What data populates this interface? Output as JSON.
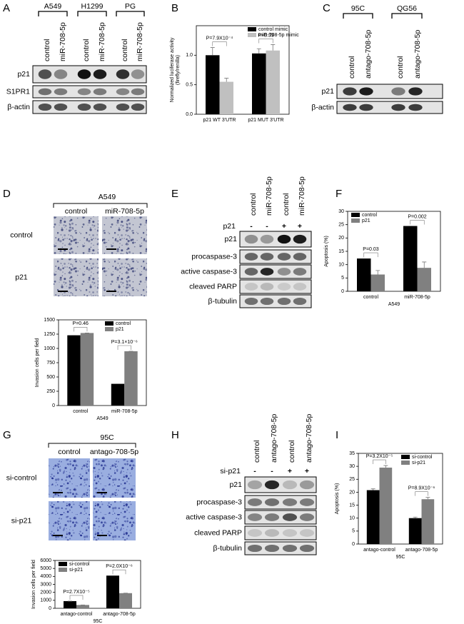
{
  "panel_labels": [
    "A",
    "B",
    "C",
    "D",
    "E",
    "F",
    "G",
    "H",
    "I"
  ],
  "blot_A": {
    "groups": [
      "A549",
      "H1299",
      "PG"
    ],
    "lanes": [
      "control",
      "miR-708-5p",
      "control",
      "miR-708-5p",
      "control",
      "miR-708-5p"
    ],
    "rows": [
      "p21",
      "S1PR1",
      "β-actin"
    ]
  },
  "blot_C": {
    "groups": [
      "95C",
      "QG56"
    ],
    "lanes": [
      "control",
      "antago-708-5p",
      "control",
      "antago-708-5p"
    ],
    "rows": [
      "p21",
      "β-actin"
    ]
  },
  "images_D": {
    "title": "A549",
    "columns": [
      "control",
      "miR-708-5p"
    ],
    "rows": [
      "control",
      "p21"
    ]
  },
  "blot_E": {
    "lanes": [
      "control",
      "miR-708-5p",
      "control",
      "miR-708-5p"
    ],
    "treatment": "p21",
    "signs": [
      "-",
      "-",
      "+",
      "+"
    ],
    "rows": [
      "p21",
      "procaspase-3",
      "active caspase-3",
      "cleaved PARP",
      "β-tubulin"
    ]
  },
  "images_G": {
    "title": "95C",
    "columns": [
      "control",
      "antago-708-5p"
    ],
    "rows": [
      "si-control",
      "si-p21"
    ]
  },
  "blot_H": {
    "lanes": [
      "control",
      "antago-708-5p",
      "control",
      "antago-708-5p"
    ],
    "treatment": "si-p21",
    "signs": [
      "-",
      "-",
      "+",
      "+"
    ],
    "rows": [
      "p21",
      "procaspase-3",
      "active caspase-3",
      "cleaved PARP",
      "β-tubulin"
    ]
  },
  "chart_data": [
    {
      "type": "bar",
      "ylabel": [
        "Normalized luciferase activity",
        "(firefly/renilla)"
      ],
      "categories": [
        "p21 WT 3'UTR",
        "p21 MUT 3'UTR"
      ],
      "series": [
        {
          "name": "control mimic",
          "color": "#000000",
          "values": [
            1.0,
            1.03
          ],
          "errors": [
            0.13,
            0.08
          ]
        },
        {
          "name": "miR-708-5p mimic",
          "color": "#c0c0c0",
          "values": [
            0.55,
            1.08
          ],
          "errors": [
            0.06,
            0.1
          ]
        }
      ],
      "ylim": [
        0,
        1.5
      ],
      "yticks": [
        {
          "value": 0,
          "label": "0.0"
        },
        {
          "value": 0.5,
          "label": "0.5"
        },
        {
          "value": 1,
          "label": "1.0"
        }
      ],
      "legend": "upper right",
      "annotations": [
        "P=7.9X10⁻⁴",
        "P=0.39"
      ]
    },
    {
      "type": "bar",
      "ylabel": "Invasion cells per field",
      "xlabel": "A549",
      "categories": [
        "control",
        "miR-708-5p"
      ],
      "series": [
        {
          "name": "control",
          "color": "#000000",
          "values": [
            1230,
            380
          ],
          "errors": [
            0,
            0
          ]
        },
        {
          "name": "p21",
          "color": "#808080",
          "values": [
            1270,
            950
          ],
          "errors": [
            0,
            0
          ]
        }
      ],
      "ylim": [
        0,
        1500
      ],
      "yticks": [
        0,
        250,
        500,
        750,
        1000,
        1250,
        1500
      ],
      "legend": "upper right",
      "annotations": [
        "P=0.46",
        "P=3.1×10⁻⁶"
      ]
    },
    {
      "type": "bar",
      "ylabel": "Apoptosis (%)",
      "xlabel": "A549",
      "categories": [
        "control",
        "miR-708-5p"
      ],
      "series": [
        {
          "name": "control",
          "color": "#000000",
          "values": [
            12.3,
            24.5
          ],
          "errors": [
            0,
            0
          ]
        },
        {
          "name": "p21",
          "color": "#808080",
          "values": [
            6.3,
            8.8
          ],
          "errors": [
            1.5,
            2.2
          ]
        }
      ],
      "ylim": [
        0,
        30
      ],
      "yticks": [
        0,
        5,
        10,
        15,
        20,
        25,
        30
      ],
      "legend": "upper left",
      "annotations": [
        "P=0.03",
        "P=0.002"
      ]
    },
    {
      "type": "bar",
      "ylabel": "Invasion cells per field",
      "xlabel": "95C",
      "categories": [
        "antago-control",
        "antago-708-5p"
      ],
      "series": [
        {
          "name": "si-control",
          "color": "#000000",
          "values": [
            900,
            4100
          ],
          "errors": [
            0,
            0
          ]
        },
        {
          "name": "si-p21",
          "color": "#808080",
          "values": [
            420,
            1900
          ],
          "errors": [
            0,
            0
          ]
        }
      ],
      "ylim": [
        0,
        6000
      ],
      "yticks": [
        0,
        1000,
        2000,
        3000,
        4000,
        5000,
        6000
      ],
      "legend": "upper left",
      "annotations": [
        "P=2.7X10⁻⁵",
        "P=2.0X10⁻⁶"
      ]
    },
    {
      "type": "bar",
      "ylabel": "Apoptosis (%)",
      "xlabel": "95C",
      "categories": [
        "antago-control",
        "antago-708-5p"
      ],
      "series": [
        {
          "name": "si-control",
          "color": "#000000",
          "values": [
            20.8,
            10.0
          ],
          "errors": [
            0.5,
            0.4
          ]
        },
        {
          "name": "si-p21",
          "color": "#808080",
          "values": [
            29.5,
            17.3
          ],
          "errors": [
            0.8,
            0.7
          ]
        }
      ],
      "ylim": [
        0,
        35
      ],
      "yticks": [
        0,
        5,
        10,
        15,
        20,
        25,
        30,
        35
      ],
      "legend": "upper right",
      "annotations": [
        "P=3.2X10⁻⁵",
        "P=8.9X10⁻⁶"
      ]
    }
  ]
}
